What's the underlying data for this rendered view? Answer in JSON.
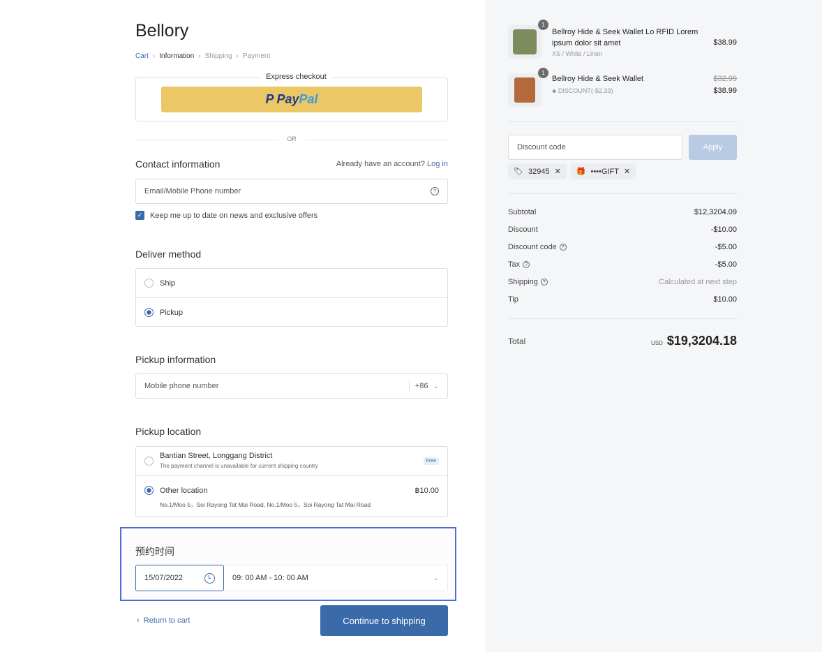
{
  "brand": "Bellory",
  "breadcrumb": [
    "Cart",
    "Information",
    "Shipping",
    "Payment"
  ],
  "express": {
    "label": "Express checkout",
    "paypal_pay": "Pay",
    "paypal_pal": "Pal"
  },
  "or": "OR",
  "contact": {
    "title": "Contact information",
    "account_prompt": "Already have an account?",
    "login": "Log in",
    "email_placeholder": "Email/Mobile Phone number",
    "newsletter": "Keep me up to date on news and exclusive offers",
    "newsletter_checked": true
  },
  "deliver": {
    "title": "Deliver method",
    "options": [
      {
        "label": "Ship",
        "selected": false
      },
      {
        "label": "Pickup",
        "selected": true
      }
    ]
  },
  "pickup_info": {
    "title": "Pickup information",
    "phone_placeholder": "Mobile phone number",
    "country_code": "+86"
  },
  "pickup_location": {
    "title": "Pickup location",
    "options": [
      {
        "label": "Bantian Street, Longgang District",
        "note": "The payment channel is unavailable for current shipping country",
        "badge": "Free",
        "selected": false
      },
      {
        "label": "Other location",
        "price": "฿10.00",
        "address": "No.1/Moo 5，Soi Rayong Tat Mai Road, No.1/Moo 5，Soi Rayong Tat Mai Road",
        "selected": true
      }
    ]
  },
  "appointment": {
    "title": "预约时间",
    "date": "15/07/2022",
    "time": "09: 00 AM - 10: 00 AM"
  },
  "footer": {
    "return": "Return to cart",
    "continue": "Continue to shipping"
  },
  "cart": {
    "items": [
      {
        "qty": "1",
        "name": "Bellroy Hide & Seek Wallet Lo RFID Lorem ipsum dolor sit amet",
        "variant": "XS / White / Linen",
        "price": "$38.99"
      },
      {
        "qty": "1",
        "name": "Bellroy Hide & Seek Wallet",
        "discount": "DISCOUNT(-$2.33)",
        "original_price": "$32.99",
        "price": "$38.99"
      }
    ],
    "discount_placeholder": "Discount code",
    "apply": "Apply",
    "codes": [
      "32945",
      "••••GIFT"
    ]
  },
  "summary": {
    "rows": [
      {
        "label": "Subtotal",
        "value": "$12,3204.09"
      },
      {
        "label": "Discount",
        "value": "-$10.00"
      },
      {
        "label": "Discount code",
        "value": "-$5.00",
        "help": true
      },
      {
        "label": "Tax",
        "value": "-$5.00",
        "help": true
      },
      {
        "label": "Shipping",
        "value": "Calculated at next step",
        "help": true
      },
      {
        "label": "Tip",
        "value": "$10.00"
      }
    ],
    "total_label": "Total",
    "currency": "USD",
    "total": "$19,3204.18"
  },
  "colors": {
    "accent": "#3a6aa8",
    "paypal": "#ecc766",
    "highlight": "#4a6fd9",
    "panel": "#f5f6f8"
  }
}
